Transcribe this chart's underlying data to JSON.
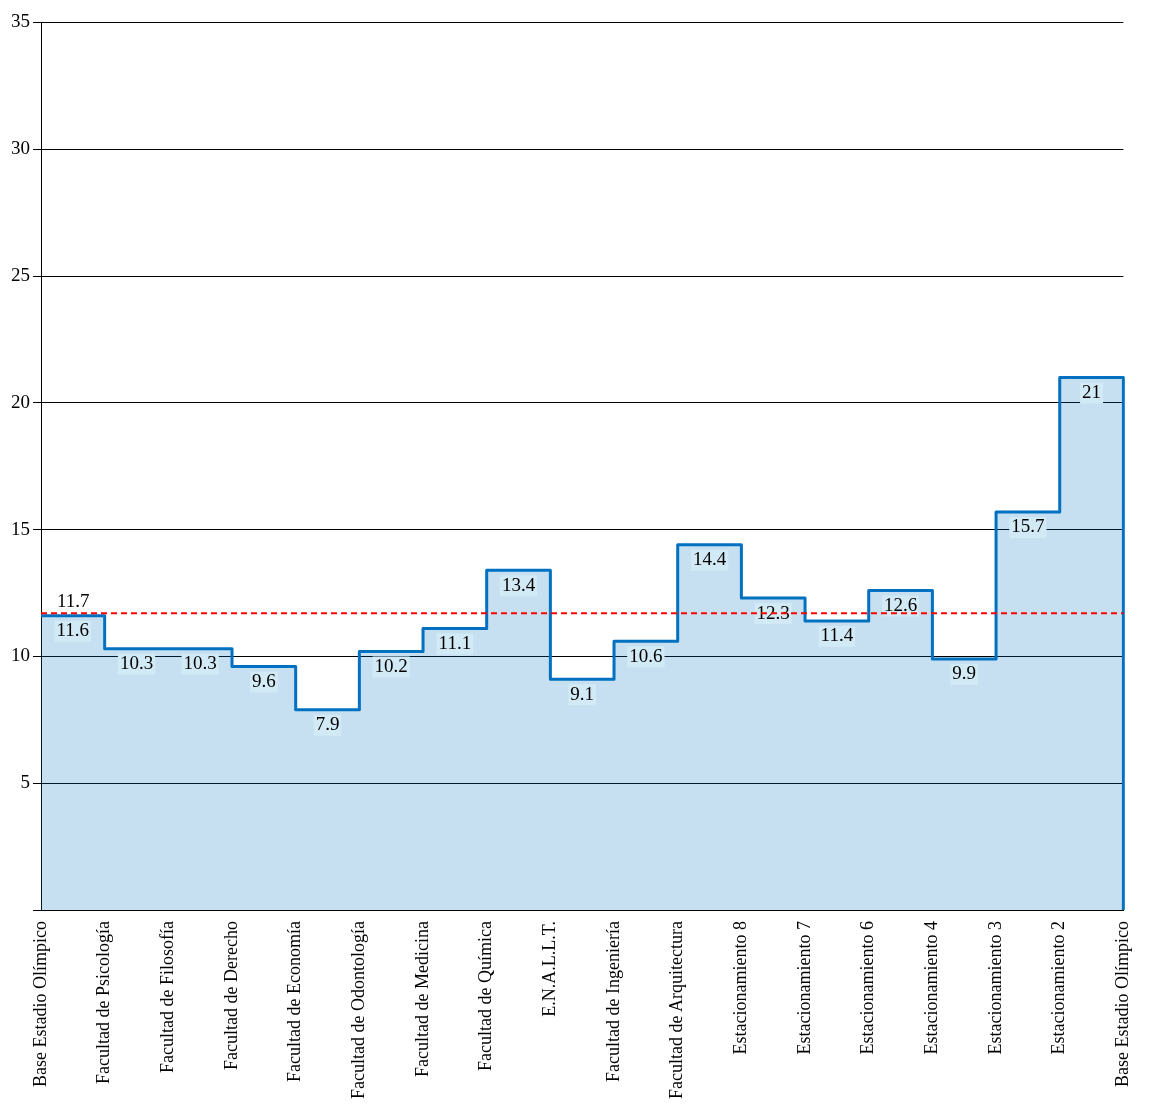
{
  "chart_data": {
    "type": "step",
    "categories": [
      "Base Estadio Olímpico",
      "Facultad de Psicología",
      "Facultad de Filosofía",
      "Facultad de Derecho",
      "Facultad de Economía",
      "Facultad de Odontología",
      "Facultad de Medicina",
      "Facultad de Química",
      "E.N.A.L.L.T.",
      "Facultad de Ingeniería",
      "Facultad de Arquitectura",
      "Estacionamiento 8",
      "Estacionamiento 7",
      "Estacionamiento 6",
      "Estacionamiento 4",
      "Estacionamiento 3",
      "Estacionamiento 2",
      "Base Estadio Olímpico"
    ],
    "series": [
      {
        "color": "#0070c0",
        "values": [
          11.6,
          10.3,
          10.3,
          9.6,
          7.9,
          10.2,
          11.1,
          13.4,
          9.1,
          10.6,
          14.4,
          12.3,
          11.4,
          12.6,
          9.9,
          15.7,
          21,
          0
        ],
        "value_labels": [
          "11.6",
          "10.3",
          "10.3",
          "9.6",
          "7.9",
          "10.2",
          "11.1",
          "13.4",
          "9.1",
          "10.6",
          "14.4",
          "12.3",
          "11.4",
          "12.6",
          "9.9",
          "15.7",
          "21",
          null
        ]
      }
    ],
    "ylim": [
      0,
      35
    ],
    "yticks": [
      {
        "value": 0,
        "label": null
      },
      5,
      10,
      15,
      20,
      25,
      30,
      35
    ],
    "grid": "y",
    "legend": false,
    "ref_lines": [
      {
        "axis": "y",
        "value": 11.7,
        "label": "11.7",
        "color": "#ff0000",
        "line_style": "dashed"
      }
    ]
  }
}
